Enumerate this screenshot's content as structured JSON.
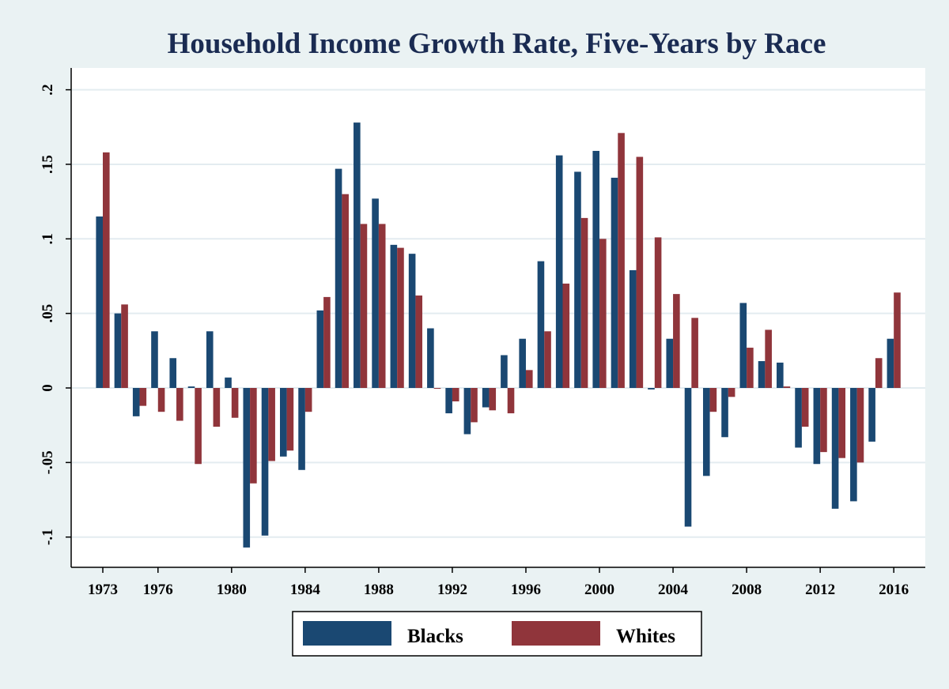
{
  "chart_data": {
    "type": "bar",
    "title": "Household Income Growth Rate, Five-Years by Race",
    "xlabel": "",
    "ylabel": "",
    "ylim": [
      -0.115,
      0.22
    ],
    "yticks": [
      -0.1,
      -0.05,
      0,
      0.05,
      0.1,
      0.15,
      0.2
    ],
    "ytick_labels": [
      "-.1",
      "-.05",
      "0",
      ".05",
      ".1",
      ".15",
      ".2"
    ],
    "xtick_labels": [
      "1973",
      "1976",
      "1980",
      "1984",
      "1988",
      "1992",
      "1996",
      "2000",
      "2004",
      "2008",
      "2012",
      "2016"
    ],
    "grid": true,
    "legend_position": "bottom",
    "categories": [
      1973,
      1974,
      1975,
      1976,
      1977,
      1978,
      1979,
      1980,
      1981,
      1982,
      1983,
      1984,
      1985,
      1986,
      1987,
      1988,
      1989,
      1990,
      1991,
      1992,
      1993,
      1994,
      1995,
      1996,
      1997,
      1998,
      1999,
      2000,
      2001,
      2002,
      2003,
      2004,
      2005,
      2006,
      2007,
      2008,
      2009,
      2010,
      2011,
      2012,
      2013,
      2014,
      2015,
      2016
    ],
    "series": [
      {
        "name": "Blacks",
        "color": "#1a4872",
        "values": [
          0.115,
          0.05,
          -0.019,
          0.038,
          0.02,
          0.001,
          0.038,
          0.007,
          -0.107,
          -0.099,
          -0.046,
          -0.055,
          0.052,
          0.147,
          0.178,
          0.127,
          0.096,
          0.09,
          0.04,
          -0.017,
          -0.031,
          -0.013,
          0.022,
          0.033,
          0.085,
          0.156,
          0.145,
          0.159,
          0.141,
          0.079,
          -0.001,
          0.033,
          -0.093,
          -0.059,
          -0.033,
          0.057,
          0.018,
          0.017,
          -0.04,
          -0.051,
          -0.081,
          -0.076,
          -0.036,
          0.033
        ]
      },
      {
        "name": "Whites",
        "color": "#90353b",
        "values": [
          0.158,
          0.056,
          -0.012,
          -0.016,
          -0.022,
          -0.051,
          -0.026,
          -0.02,
          -0.064,
          -0.049,
          -0.042,
          -0.016,
          0.061,
          0.13,
          0.11,
          0.11,
          0.094,
          0.062,
          0.0,
          -0.009,
          -0.023,
          -0.015,
          -0.017,
          0.012,
          0.038,
          0.07,
          0.114,
          0.1,
          0.171,
          0.155,
          0.101,
          0.063,
          0.047,
          -0.016,
          -0.006,
          0.027,
          0.039,
          0.001,
          -0.026,
          -0.043,
          -0.047,
          -0.05,
          0.02,
          0.064
        ]
      }
    ]
  },
  "colors": {
    "background": "#eaf2f3",
    "plot_background": "#ffffff",
    "title": "#1a2b52",
    "grid": "#e3ecf0"
  }
}
